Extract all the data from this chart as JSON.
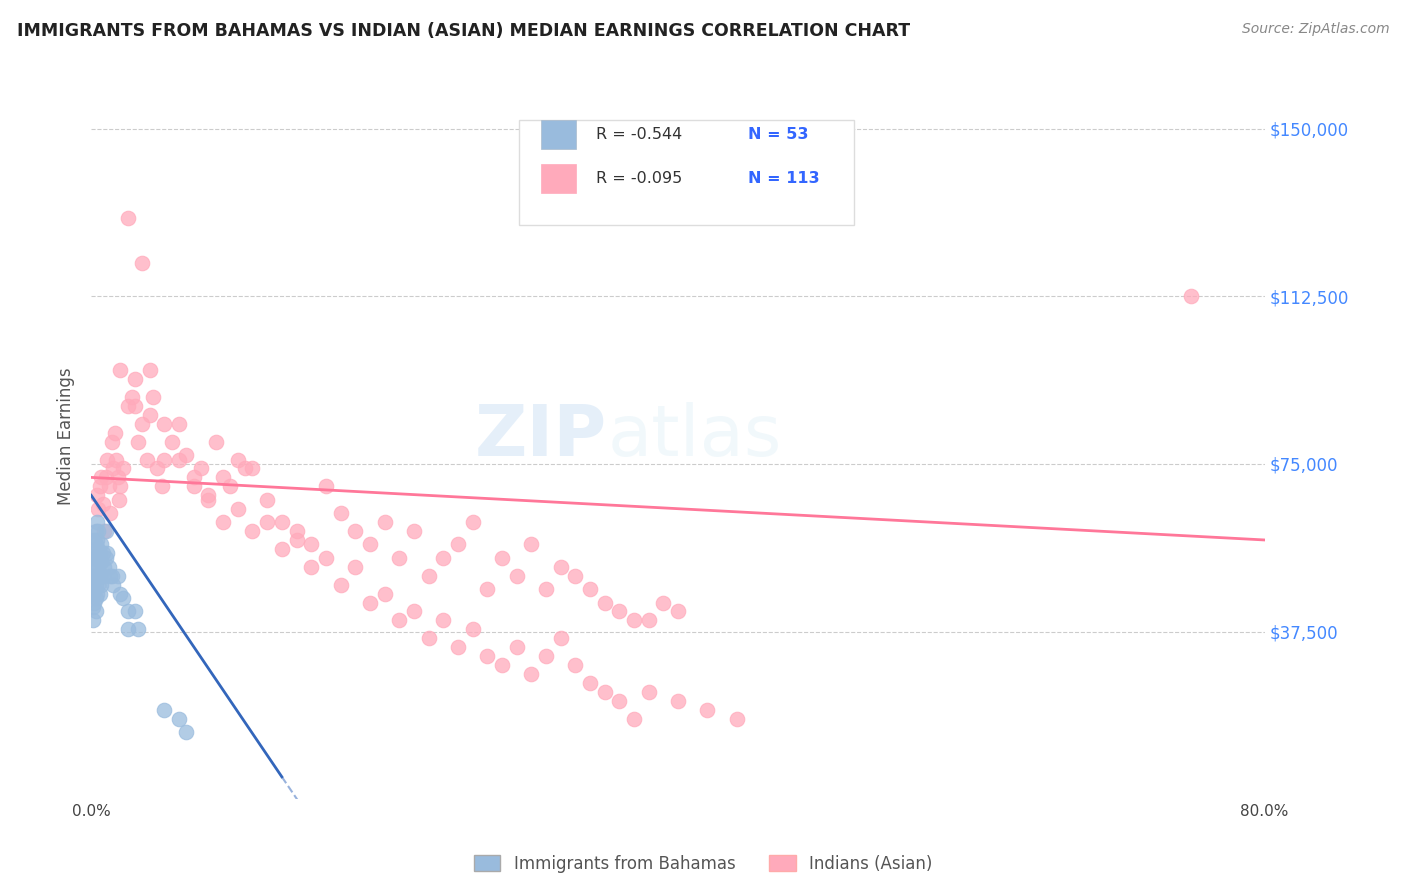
{
  "title": "IMMIGRANTS FROM BAHAMAS VS INDIAN (ASIAN) MEDIAN EARNINGS CORRELATION CHART",
  "source": "Source: ZipAtlas.com",
  "ylabel": "Median Earnings",
  "xlim": [
    0,
    0.8
  ],
  "ylim": [
    0,
    162500
  ],
  "yticks": [
    0,
    37500,
    75000,
    112500,
    150000
  ],
  "ytick_labels": [
    "",
    "$37,500",
    "$75,000",
    "$112,500",
    "$150,000"
  ],
  "xticks": [
    0.0,
    0.1,
    0.2,
    0.3,
    0.4,
    0.5,
    0.6,
    0.7,
    0.8
  ],
  "xtick_labels": [
    "0.0%",
    "",
    "",
    "",
    "",
    "",
    "",
    "",
    "80.0%"
  ],
  "legend_r_blue": "R = -0.544",
  "legend_n_blue": "N = 53",
  "legend_r_pink": "R = -0.095",
  "legend_n_pink": "N = 113",
  "blue_color": "#99BBDD",
  "pink_color": "#FFAABB",
  "blue_line_color": "#3366BB",
  "pink_line_color": "#FF7799",
  "watermark_zip": "ZIP",
  "watermark_atlas": "atlas",
  "legend_label_blue": "Immigrants from Bahamas",
  "legend_label_pink": "Indians (Asian)",
  "blue_trend_x0": 0.0,
  "blue_trend_y0": 68000,
  "blue_trend_x1": 0.13,
  "blue_trend_y1": 5000,
  "pink_trend_x0": 0.0,
  "pink_trend_y0": 72000,
  "pink_trend_x1": 0.8,
  "pink_trend_y1": 58000,
  "blue_scatter_x": [
    0.001,
    0.001,
    0.001,
    0.001,
    0.001,
    0.001,
    0.002,
    0.002,
    0.002,
    0.002,
    0.002,
    0.003,
    0.003,
    0.003,
    0.003,
    0.003,
    0.003,
    0.003,
    0.004,
    0.004,
    0.004,
    0.004,
    0.004,
    0.005,
    0.005,
    0.005,
    0.005,
    0.006,
    0.006,
    0.006,
    0.007,
    0.007,
    0.007,
    0.008,
    0.008,
    0.009,
    0.01,
    0.01,
    0.011,
    0.012,
    0.013,
    0.014,
    0.015,
    0.018,
    0.02,
    0.022,
    0.025,
    0.025,
    0.03,
    0.032,
    0.05,
    0.06,
    0.065
  ],
  "blue_scatter_y": [
    55000,
    52000,
    49000,
    46000,
    43000,
    40000,
    58000,
    54000,
    50000,
    47000,
    44000,
    60000,
    57000,
    54000,
    51000,
    48000,
    45000,
    42000,
    62000,
    58000,
    54000,
    50000,
    46000,
    60000,
    56000,
    52000,
    48000,
    55000,
    50000,
    46000,
    57000,
    53000,
    48000,
    55000,
    50000,
    52000,
    60000,
    54000,
    55000,
    52000,
    50000,
    50000,
    48000,
    50000,
    46000,
    45000,
    42000,
    38000,
    42000,
    38000,
    20000,
    18000,
    15000
  ],
  "pink_scatter_x": [
    0.004,
    0.005,
    0.006,
    0.007,
    0.008,
    0.009,
    0.01,
    0.011,
    0.012,
    0.013,
    0.014,
    0.015,
    0.016,
    0.017,
    0.018,
    0.019,
    0.02,
    0.022,
    0.025,
    0.028,
    0.03,
    0.032,
    0.035,
    0.038,
    0.04,
    0.042,
    0.045,
    0.048,
    0.05,
    0.055,
    0.06,
    0.065,
    0.07,
    0.075,
    0.08,
    0.085,
    0.09,
    0.095,
    0.1,
    0.105,
    0.11,
    0.12,
    0.13,
    0.14,
    0.15,
    0.16,
    0.17,
    0.18,
    0.19,
    0.2,
    0.21,
    0.22,
    0.23,
    0.24,
    0.25,
    0.26,
    0.27,
    0.28,
    0.29,
    0.3,
    0.31,
    0.32,
    0.33,
    0.34,
    0.35,
    0.36,
    0.37,
    0.38,
    0.39,
    0.4,
    0.02,
    0.03,
    0.04,
    0.05,
    0.06,
    0.07,
    0.08,
    0.09,
    0.1,
    0.11,
    0.12,
    0.13,
    0.14,
    0.15,
    0.16,
    0.17,
    0.18,
    0.19,
    0.2,
    0.21,
    0.22,
    0.23,
    0.24,
    0.25,
    0.26,
    0.27,
    0.28,
    0.29,
    0.3,
    0.31,
    0.32,
    0.33,
    0.34,
    0.35,
    0.36,
    0.37,
    0.38,
    0.4,
    0.42,
    0.44,
    0.025,
    0.035,
    0.75
  ],
  "pink_scatter_y": [
    68000,
    65000,
    70000,
    72000,
    66000,
    60000,
    72000,
    76000,
    70000,
    64000,
    80000,
    74000,
    82000,
    76000,
    72000,
    67000,
    70000,
    74000,
    88000,
    90000,
    94000,
    80000,
    84000,
    76000,
    96000,
    90000,
    74000,
    70000,
    76000,
    80000,
    84000,
    77000,
    70000,
    74000,
    67000,
    80000,
    72000,
    70000,
    76000,
    74000,
    74000,
    67000,
    62000,
    60000,
    57000,
    70000,
    64000,
    60000,
    57000,
    62000,
    54000,
    60000,
    50000,
    54000,
    57000,
    62000,
    47000,
    54000,
    50000,
    57000,
    47000,
    52000,
    50000,
    47000,
    44000,
    42000,
    40000,
    40000,
    44000,
    42000,
    96000,
    88000,
    86000,
    84000,
    76000,
    72000,
    68000,
    62000,
    65000,
    60000,
    62000,
    56000,
    58000,
    52000,
    54000,
    48000,
    52000,
    44000,
    46000,
    40000,
    42000,
    36000,
    40000,
    34000,
    38000,
    32000,
    30000,
    34000,
    28000,
    32000,
    36000,
    30000,
    26000,
    24000,
    22000,
    18000,
    24000,
    22000,
    20000,
    18000,
    130000,
    120000,
    112500
  ]
}
